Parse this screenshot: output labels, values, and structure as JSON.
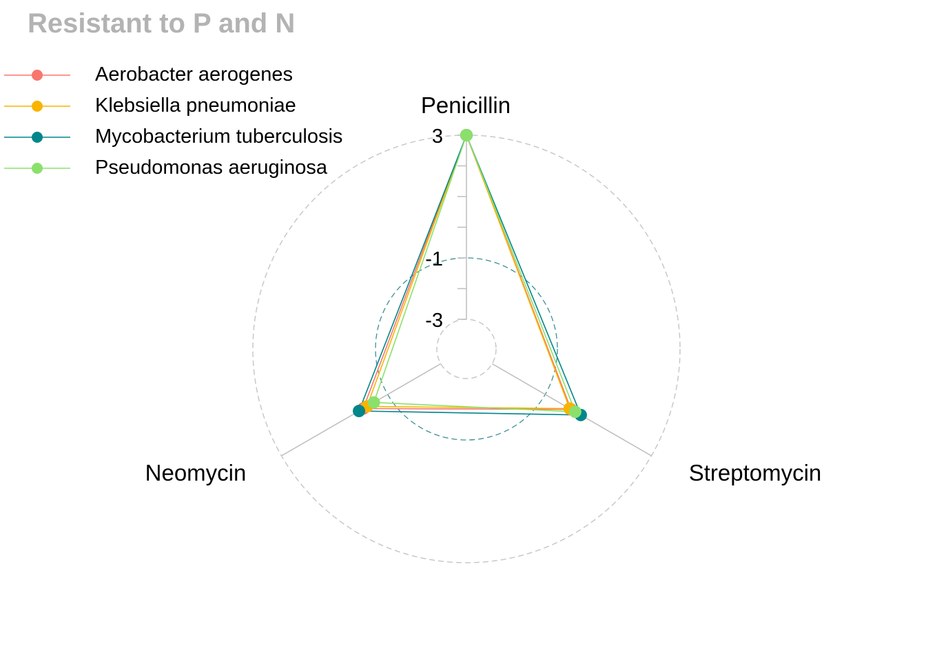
{
  "chart_data": {
    "type": "radar",
    "title": "Resistant to P and N",
    "axes": [
      "Penicillin",
      "Streptomycin",
      "Neomycin"
    ],
    "grid_labels": [
      "-3",
      "-1",
      "3"
    ],
    "rlim": [
      -3,
      3
    ],
    "grid": {
      "min_value": -3,
      "mid_value": -1,
      "max_value": 3
    },
    "legend_position": "top-left",
    "series": [
      {
        "name": "Aerobacter aerogenes",
        "color": "#F8766D",
        "values": [
          3.0,
          -0.03,
          -0.08
        ]
      },
      {
        "name": "Klebsiella pneumoniae",
        "color": "#F9B400",
        "values": [
          3.0,
          -0.08,
          -0.22
        ]
      },
      {
        "name": "Mycobacterium tuberculosis",
        "color": "#00868B",
        "values": [
          3.0,
          0.34,
          0.08
        ]
      },
      {
        "name": "Pseudomonas aeruginosa",
        "color": "#8BE06B",
        "values": [
          3.0,
          0.13,
          -0.48
        ]
      }
    ]
  }
}
